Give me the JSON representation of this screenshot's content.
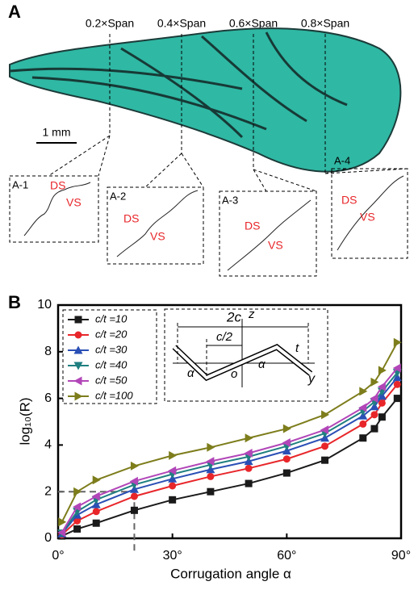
{
  "panel_a": {
    "label": "A",
    "span_labels": [
      "0.2×Span",
      "0.4×Span",
      "0.6×Span",
      "0.8×Span"
    ],
    "scale_bar": "1 mm",
    "insets": [
      {
        "label": "A-1",
        "ds": "DS",
        "vs": "VS"
      },
      {
        "label": "A-2",
        "ds": "DS",
        "vs": "VS"
      },
      {
        "label": "A-3",
        "ds": "DS",
        "vs": "VS"
      },
      {
        "label": "A-4",
        "ds": "DS",
        "vs": "VS"
      }
    ]
  },
  "chart_data": {
    "type": "line",
    "panel_label": "B",
    "x_label": "Corrugation angle α",
    "y_label": "log₁₀(R)",
    "x": [
      1,
      5,
      10,
      20,
      30,
      40,
      50,
      60,
      70,
      80,
      83,
      85,
      89
    ],
    "series": [
      {
        "name": "c/t =10",
        "color": "#1a1a1a",
        "marker": "square",
        "values": [
          0.1,
          0.4,
          0.65,
          1.2,
          1.65,
          2.0,
          2.35,
          2.8,
          3.35,
          4.3,
          4.7,
          5.2,
          6.0
        ]
      },
      {
        "name": "c/t =20",
        "color": "#e8262a",
        "marker": "circle",
        "values": [
          0.15,
          0.75,
          1.15,
          1.8,
          2.25,
          2.65,
          3.0,
          3.4,
          3.95,
          4.9,
          5.3,
          5.8,
          6.6
        ]
      },
      {
        "name": "c/t =30",
        "color": "#2a4fb5",
        "marker": "triangle-up",
        "values": [
          0.2,
          1.0,
          1.45,
          2.1,
          2.55,
          2.95,
          3.3,
          3.75,
          4.3,
          5.25,
          5.65,
          6.1,
          6.9
        ]
      },
      {
        "name": "c/t =40",
        "color": "#1f7f80",
        "marker": "triangle-down",
        "values": [
          0.22,
          1.15,
          1.65,
          2.3,
          2.75,
          3.15,
          3.5,
          3.95,
          4.5,
          5.45,
          5.85,
          6.3,
          7.1
        ]
      },
      {
        "name": "c/t =50",
        "color": "#b246b8",
        "marker": "triangle-left",
        "values": [
          0.25,
          1.35,
          1.8,
          2.45,
          2.9,
          3.3,
          3.65,
          4.1,
          4.65,
          5.6,
          6.0,
          6.5,
          7.3
        ]
      },
      {
        "name": "c/t =100",
        "color": "#7d7d1c",
        "marker": "triangle-right",
        "values": [
          0.7,
          2.0,
          2.5,
          3.1,
          3.55,
          3.9,
          4.3,
          4.7,
          5.3,
          6.3,
          6.7,
          7.2,
          8.4
        ]
      }
    ],
    "xlim": [
      0,
      90
    ],
    "xticks": [
      {
        "value": 0,
        "label": "0°"
      },
      {
        "value": 30,
        "label": "30°"
      },
      {
        "value": 60,
        "label": "60°"
      },
      {
        "value": 90,
        "label": "90°"
      }
    ],
    "ylim": [
      0,
      10
    ],
    "yticks": [
      0,
      2,
      4,
      6,
      8,
      10
    ],
    "guide_point": {
      "x": 20,
      "y": 2
    },
    "legend": "upper-left",
    "inset_labels": {
      "width": "2c",
      "z": "z",
      "half": "c/2",
      "alpha_left": "α",
      "origin": "o",
      "alpha_right": "α",
      "thickness": "t",
      "y": "y"
    }
  }
}
